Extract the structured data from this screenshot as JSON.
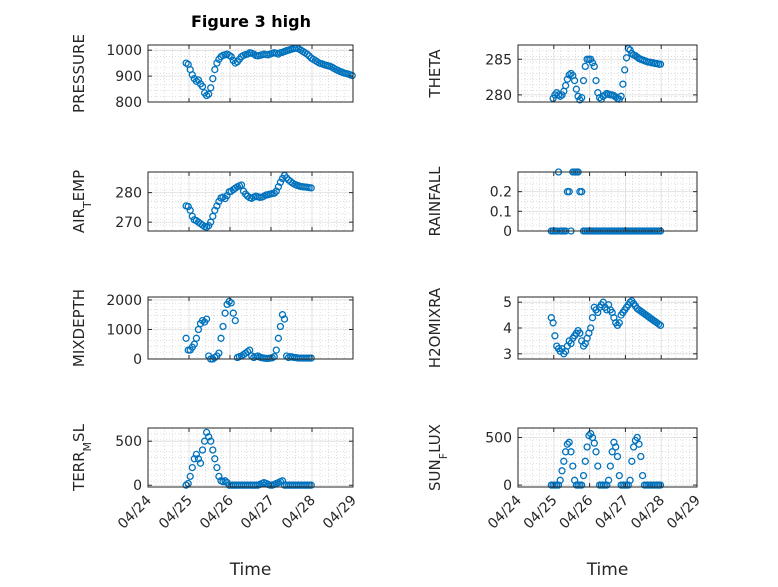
{
  "figure": {
    "title": "Figure 3 high",
    "xlabel": "Time",
    "x_tick_labels": [
      "04/24",
      "04/25",
      "04/26",
      "04/27",
      "04/28",
      "04/29"
    ],
    "marker_color": "#0072BD"
  },
  "chart_data": [
    {
      "type": "scatter",
      "ylabel": "PRESSURE",
      "ylim": [
        800,
        1020
      ],
      "yticks": [
        800,
        900,
        1000
      ],
      "xlim": [
        "04/24",
        "04/29"
      ],
      "grid": true,
      "x": [
        0.93,
        0.98,
        1.03,
        1.08,
        1.13,
        1.18,
        1.23,
        1.28,
        1.33,
        1.38,
        1.43,
        1.48,
        1.53,
        1.58,
        1.63,
        1.68,
        1.73,
        1.78,
        1.83,
        1.88,
        1.93,
        1.98,
        2.03,
        2.08,
        2.13,
        2.18,
        2.23,
        2.28,
        2.33,
        2.38,
        2.43,
        2.48,
        2.53,
        2.58,
        2.63,
        2.68,
        2.73,
        2.78,
        2.83,
        2.88,
        2.93,
        2.98,
        3.03,
        3.08,
        3.13,
        3.18,
        3.23,
        3.28,
        3.33,
        3.38,
        3.43,
        3.48,
        3.53,
        3.58,
        3.63,
        3.68,
        3.73,
        3.78,
        3.83,
        3.88,
        3.93,
        3.98,
        4.03,
        4.08,
        4.13,
        4.18,
        4.23,
        4.28,
        4.33,
        4.38,
        4.43,
        4.48,
        4.53,
        4.58,
        4.63,
        4.68,
        4.73,
        4.78,
        4.83,
        4.88,
        4.93,
        4.98
      ],
      "y": [
        950,
        945,
        925,
        905,
        890,
        880,
        885,
        870,
        860,
        835,
        825,
        830,
        855,
        890,
        925,
        950,
        965,
        975,
        980,
        982,
        985,
        980,
        975,
        960,
        950,
        955,
        965,
        975,
        980,
        983,
        985,
        990,
        988,
        985,
        980,
        978,
        980,
        982,
        985,
        983,
        982,
        985,
        988,
        990,
        988,
        985,
        990,
        992,
        995,
        998,
        1000,
        1003,
        1005,
        1007,
        1008,
        1005,
        1000,
        995,
        990,
        985,
        978,
        970,
        965,
        960,
        955,
        950,
        948,
        945,
        942,
        940,
        938,
        935,
        930,
        926,
        922,
        918,
        915,
        912,
        910,
        908,
        905,
        902
      ]
    },
    {
      "type": "scatter",
      "ylabel": "THETA",
      "ylim": [
        279,
        287
      ],
      "yticks": [
        280,
        285
      ],
      "xlim": [
        "04/24",
        "04/29"
      ],
      "grid": true,
      "x": [
        0.98,
        1.03,
        1.08,
        1.13,
        1.18,
        1.23,
        1.28,
        1.33,
        1.38,
        1.43,
        1.48,
        1.53,
        1.58,
        1.63,
        1.68,
        1.73,
        1.78,
        1.83,
        1.88,
        1.93,
        1.98,
        2.03,
        2.08,
        2.13,
        2.18,
        2.23,
        2.28,
        2.33,
        2.38,
        2.43,
        2.48,
        2.53,
        2.58,
        2.63,
        2.68,
        2.73,
        2.78,
        2.83,
        2.88,
        2.93,
        2.98,
        3.03,
        3.08,
        3.13,
        3.18,
        3.23,
        3.28,
        3.33,
        3.38,
        3.43,
        3.48,
        3.53,
        3.58,
        3.63,
        3.68,
        3.73,
        3.78,
        3.83,
        3.88,
        3.93,
        3.98
      ],
      "y": [
        279.5,
        280,
        280.3,
        280,
        279.8,
        280,
        280.5,
        281.3,
        282.2,
        282.8,
        283,
        282.7,
        282,
        280.8,
        279.8,
        279.3,
        279.6,
        282,
        284,
        285,
        285,
        285,
        284.5,
        284,
        282,
        280.3,
        279.6,
        279.4,
        279.8,
        280,
        280.2,
        280.1,
        280,
        280,
        279.9,
        279.7,
        279.5,
        279.4,
        279.8,
        281.5,
        283.5,
        285.2,
        286.5,
        286.3,
        285.8,
        285.6,
        285.5,
        285.3,
        285.1,
        285,
        284.9,
        284.8,
        284.7,
        284.6,
        284.6,
        284.5,
        284.5,
        284.4,
        284.4,
        284.3,
        284.3
      ]
    },
    {
      "type": "scatter",
      "ylabel": "AIR_TEMP",
      "ylim": [
        267,
        287
      ],
      "yticks": [
        270,
        280
      ],
      "xlim": [
        "04/24",
        "04/29"
      ],
      "grid": true,
      "x": [
        0.93,
        0.98,
        1.03,
        1.08,
        1.13,
        1.18,
        1.23,
        1.28,
        1.33,
        1.38,
        1.43,
        1.48,
        1.53,
        1.58,
        1.63,
        1.68,
        1.73,
        1.78,
        1.83,
        1.88,
        1.93,
        1.98,
        2.03,
        2.08,
        2.13,
        2.18,
        2.23,
        2.28,
        2.33,
        2.38,
        2.43,
        2.48,
        2.53,
        2.58,
        2.63,
        2.68,
        2.73,
        2.78,
        2.83,
        2.88,
        2.93,
        2.98,
        3.03,
        3.08,
        3.13,
        3.18,
        3.23,
        3.28,
        3.33,
        3.38,
        3.43,
        3.48,
        3.53,
        3.58,
        3.63,
        3.68,
        3.73,
        3.78,
        3.83,
        3.88,
        3.93,
        3.98
      ],
      "y": [
        275.5,
        275.3,
        274,
        272,
        270.8,
        270.5,
        270,
        269.5,
        269,
        268.5,
        268.3,
        268.8,
        270,
        272,
        274,
        275.5,
        277,
        278.2,
        278.5,
        278,
        279,
        280.3,
        280.5,
        281,
        281.5,
        282,
        282.3,
        282.6,
        280.5,
        279.5,
        278.8,
        278.3,
        278.1,
        278.5,
        278.8,
        278.6,
        278.4,
        278.5,
        278.8,
        279.2,
        279.3,
        279.5,
        279.7,
        279.8,
        280.5,
        282,
        283.5,
        284.8,
        285.8,
        285,
        284.3,
        283.7,
        283.2,
        282.8,
        282.5,
        282.3,
        282.1,
        282,
        281.9,
        281.8,
        281.7,
        281.6
      ]
    },
    {
      "type": "scatter",
      "ylabel": "RAINFALL",
      "ylim": [
        0,
        0.3
      ],
      "yticks": [
        0,
        0.1,
        0.2
      ],
      "xlim": [
        "04/24",
        "04/29"
      ],
      "grid": true,
      "x": [
        0.93,
        0.98,
        1.03,
        1.08,
        1.13,
        1.18,
        1.23,
        1.28,
        1.33,
        1.38,
        1.43,
        1.48,
        1.53,
        1.58,
        1.63,
        1.68,
        1.73,
        1.78,
        1.83,
        1.88,
        1.93,
        1.98,
        2.03,
        2.08,
        2.13,
        2.18,
        2.23,
        2.28,
        2.33,
        2.38,
        2.43,
        2.48,
        2.53,
        2.58,
        2.63,
        2.68,
        2.73,
        2.78,
        2.83,
        2.88,
        2.93,
        2.98,
        3.03,
        3.08,
        3.13,
        3.18,
        3.23,
        3.28,
        3.33,
        3.38,
        3.43,
        3.48,
        3.53,
        3.58,
        3.63,
        3.68,
        3.73,
        3.78,
        3.83,
        3.88,
        3.93,
        3.98
      ],
      "y": [
        0,
        0,
        0,
        0,
        0.3,
        0,
        0,
        0,
        0,
        0.2,
        0.2,
        0,
        0.3,
        0.3,
        0.3,
        0.3,
        0.2,
        0.2,
        0,
        0,
        0,
        0,
        0,
        0,
        0,
        0,
        0,
        0,
        0,
        0,
        0,
        0,
        0,
        0,
        0,
        0,
        0,
        0,
        0,
        0,
        0,
        0,
        0,
        0,
        0,
        0,
        0,
        0,
        0,
        0,
        0,
        0,
        0,
        0,
        0,
        0,
        0,
        0,
        0,
        0,
        0,
        0
      ]
    },
    {
      "type": "scatter",
      "ylabel": "MIXDEPTH",
      "ylim": [
        0,
        2100
      ],
      "yticks": [
        0,
        1000,
        2000
      ],
      "xlim": [
        "04/24",
        "04/29"
      ],
      "grid": true,
      "x": [
        0.93,
        0.98,
        1.03,
        1.08,
        1.13,
        1.18,
        1.23,
        1.28,
        1.33,
        1.38,
        1.43,
        1.48,
        1.53,
        1.58,
        1.63,
        1.68,
        1.73,
        1.78,
        1.83,
        1.88,
        1.93,
        1.98,
        2.03,
        2.08,
        2.13,
        2.18,
        2.23,
        2.28,
        2.33,
        2.38,
        2.43,
        2.48,
        2.53,
        2.58,
        2.63,
        2.68,
        2.73,
        2.78,
        2.83,
        2.88,
        2.93,
        2.98,
        3.03,
        3.08,
        3.13,
        3.18,
        3.23,
        3.28,
        3.33,
        3.38,
        3.43,
        3.48,
        3.53,
        3.58,
        3.63,
        3.68,
        3.73,
        3.78,
        3.83,
        3.88,
        3.93,
        3.98
      ],
      "y": [
        700,
        300,
        300,
        400,
        500,
        700,
        1000,
        1200,
        1300,
        1250,
        1350,
        100,
        0,
        0,
        50,
        100,
        200,
        700,
        1100,
        1550,
        1850,
        1950,
        1900,
        1550,
        1300,
        50,
        80,
        100,
        150,
        200,
        250,
        300,
        100,
        50,
        80,
        100,
        60,
        40,
        30,
        20,
        20,
        30,
        40,
        80,
        300,
        700,
        1100,
        1500,
        1350,
        100,
        50,
        80,
        60,
        50,
        40,
        30,
        30,
        30,
        30,
        30,
        30,
        30
      ]
    },
    {
      "type": "scatter",
      "ylabel": "H2OMIXRA",
      "ylim": [
        2.8,
        5.2
      ],
      "yticks": [
        3,
        4,
        5
      ],
      "xlim": [
        "04/24",
        "04/29"
      ],
      "grid": true,
      "x": [
        0.93,
        0.98,
        1.03,
        1.08,
        1.13,
        1.18,
        1.23,
        1.28,
        1.33,
        1.38,
        1.43,
        1.48,
        1.53,
        1.58,
        1.63,
        1.68,
        1.73,
        1.78,
        1.83,
        1.88,
        1.93,
        1.98,
        2.03,
        2.08,
        2.13,
        2.18,
        2.23,
        2.28,
        2.33,
        2.38,
        2.43,
        2.48,
        2.53,
        2.58,
        2.63,
        2.68,
        2.73,
        2.78,
        2.83,
        2.88,
        2.93,
        2.98,
        3.03,
        3.08,
        3.13,
        3.18,
        3.23,
        3.28,
        3.33,
        3.38,
        3.43,
        3.48,
        3.53,
        3.58,
        3.63,
        3.68,
        3.73,
        3.78,
        3.83,
        3.88,
        3.93,
        3.98
      ],
      "y": [
        4.4,
        4.2,
        3.7,
        3.3,
        3.2,
        3.1,
        3.2,
        3,
        3.1,
        3.3,
        3.5,
        3.4,
        3.6,
        3.7,
        3.8,
        3.9,
        3.8,
        3.5,
        3.3,
        3.4,
        3.6,
        3.8,
        4,
        4.4,
        4.8,
        4.7,
        4.6,
        4.8,
        4.9,
        5,
        4.8,
        4.7,
        4.9,
        4.7,
        4.6,
        4.4,
        4.2,
        4.1,
        4.2,
        4.5,
        4.6,
        4.7,
        4.8,
        4.9,
        5,
        5.05,
        4.95,
        4.85,
        4.75,
        4.7,
        4.65,
        4.6,
        4.55,
        4.5,
        4.45,
        4.4,
        4.35,
        4.3,
        4.25,
        4.2,
        4.15,
        4.1
      ]
    },
    {
      "type": "scatter",
      "ylabel": "TERR_MSL",
      "ylim": [
        -20,
        650
      ],
      "yticks": [
        0,
        500
      ],
      "xlim": [
        "04/24",
        "04/29"
      ],
      "grid": true,
      "x": [
        0.93,
        0.98,
        1.03,
        1.08,
        1.13,
        1.18,
        1.23,
        1.28,
        1.33,
        1.38,
        1.43,
        1.48,
        1.53,
        1.58,
        1.63,
        1.68,
        1.73,
        1.78,
        1.83,
        1.88,
        1.93,
        1.98,
        2.03,
        2.08,
        2.13,
        2.18,
        2.23,
        2.28,
        2.33,
        2.38,
        2.43,
        2.48,
        2.53,
        2.58,
        2.63,
        2.68,
        2.73,
        2.78,
        2.83,
        2.88,
        2.93,
        2.98,
        3.03,
        3.08,
        3.13,
        3.18,
        3.23,
        3.28,
        3.33,
        3.38,
        3.43,
        3.48,
        3.53,
        3.58,
        3.63,
        3.68,
        3.73,
        3.78,
        3.83,
        3.88,
        3.93,
        3.98
      ],
      "y": [
        0,
        20,
        100,
        200,
        300,
        350,
        300,
        250,
        400,
        500,
        600,
        550,
        500,
        400,
        300,
        200,
        100,
        50,
        40,
        50,
        30,
        0,
        0,
        0,
        0,
        0,
        0,
        0,
        0,
        0,
        0,
        0,
        0,
        0,
        0,
        0,
        10,
        20,
        30,
        20,
        10,
        0,
        0,
        10,
        20,
        30,
        40,
        50,
        0,
        0,
        0,
        0,
        0,
        0,
        0,
        0,
        0,
        0,
        0,
        0,
        0,
        0
      ]
    },
    {
      "type": "scatter",
      "ylabel": "SUN_FLUX",
      "ylim": [
        -20,
        600
      ],
      "yticks": [
        0,
        500
      ],
      "xlim": [
        "04/24",
        "04/29"
      ],
      "grid": true,
      "x": [
        0.93,
        0.98,
        1.03,
        1.08,
        1.13,
        1.18,
        1.23,
        1.28,
        1.33,
        1.38,
        1.43,
        1.48,
        1.53,
        1.58,
        1.63,
        1.68,
        1.73,
        1.78,
        1.83,
        1.88,
        1.93,
        1.98,
        2.03,
        2.08,
        2.13,
        2.18,
        2.23,
        2.28,
        2.33,
        2.38,
        2.43,
        2.48,
        2.53,
        2.58,
        2.63,
        2.68,
        2.73,
        2.78,
        2.83,
        2.88,
        2.93,
        2.98,
        3.03,
        3.08,
        3.13,
        3.18,
        3.23,
        3.28,
        3.33,
        3.38,
        3.43,
        3.48,
        3.53,
        3.58,
        3.63,
        3.68,
        3.73,
        3.78,
        3.83,
        3.88,
        3.93,
        3.98
      ],
      "y": [
        0,
        0,
        0,
        0,
        0,
        50,
        150,
        250,
        350,
        430,
        450,
        350,
        200,
        50,
        0,
        0,
        0,
        0,
        100,
        250,
        400,
        520,
        540,
        500,
        440,
        350,
        200,
        0,
        0,
        0,
        0,
        0,
        50,
        200,
        350,
        450,
        400,
        300,
        100,
        0,
        0,
        0,
        0,
        0,
        50,
        250,
        400,
        470,
        500,
        430,
        300,
        100,
        0,
        0,
        0,
        0,
        0,
        0,
        0,
        0,
        0,
        0
      ]
    }
  ]
}
